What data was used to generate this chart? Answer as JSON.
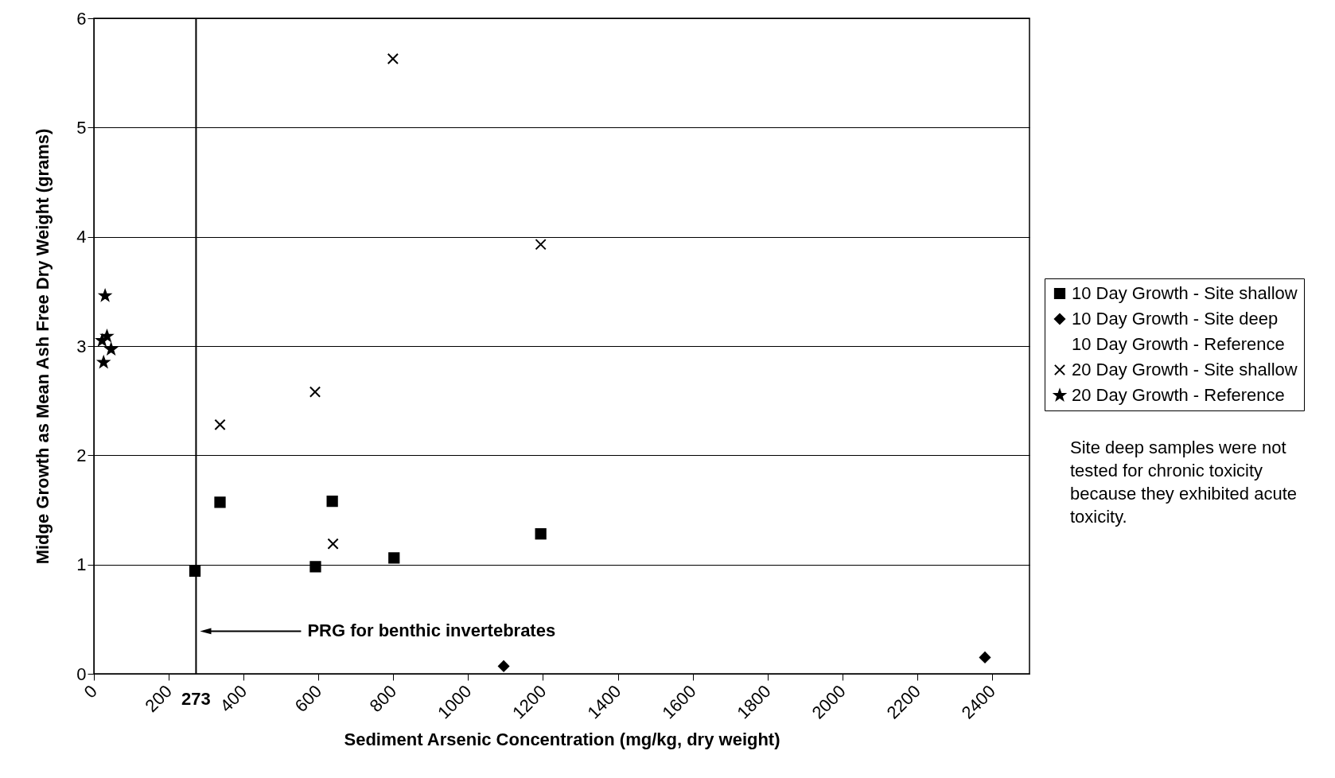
{
  "chart_data": {
    "type": "scatter",
    "xlabel": "Sediment Arsenic Concentration (mg/kg, dry weight)",
    "ylabel": "Midge Growth as Mean Ash Free Dry Weight (grams)",
    "xlim": [
      0,
      2500
    ],
    "xticks": [
      0,
      200,
      400,
      600,
      800,
      1000,
      1200,
      1400,
      1600,
      1800,
      2000,
      2200,
      2400
    ],
    "ylim": [
      0,
      6
    ],
    "yticks": [
      0,
      1,
      2,
      3,
      4,
      5,
      6
    ],
    "grid": "y",
    "legend": "right",
    "series": [
      {
        "name": "10 Day Growth - Site shallow",
        "color": "#000000",
        "marker": "square",
        "x": [
          270,
          337,
          592,
          637,
          802,
          1194
        ],
        "values": [
          0.94,
          1.57,
          0.98,
          1.58,
          1.06,
          1.28
        ]
      },
      {
        "name": "10 Day Growth - Site deep",
        "color": "#000000",
        "marker": "diamond",
        "x": [
          1095,
          2381
        ],
        "values": [
          0.07,
          0.15
        ]
      },
      {
        "name": "10 Day Growth - Reference",
        "color": "#000000",
        "marker": "none"
      },
      {
        "name": "20 Day Growth - Site shallow",
        "color": "#000000",
        "marker": "cross",
        "x": [
          337,
          591,
          639,
          799,
          1194
        ],
        "values": [
          2.28,
          2.58,
          1.19,
          5.63,
          3.93
        ]
      },
      {
        "name": "20 Day Growth - Reference",
        "color": "#000000",
        "marker": "star",
        "x": [
          22,
          26,
          30,
          35,
          46
        ],
        "values": [
          3.05,
          2.85,
          3.46,
          3.09,
          2.97
        ]
      }
    ],
    "ref_lines": [
      {
        "axis": "x",
        "value": 273,
        "label": "273",
        "color": "#000000"
      }
    ],
    "annotations": [
      "PRG for benthic invertebrates",
      "Site deep samples were not tested for chronic toxicity because they exhibited acute toxicity."
    ]
  }
}
